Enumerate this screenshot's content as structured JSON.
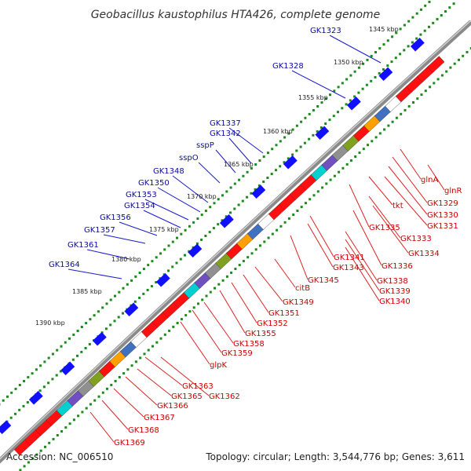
{
  "title": "Geobacillus kaustophilus HTA426, complete genome",
  "accession": "Accession: NC_006510",
  "topology": "Topology: circular; Length: 3,544,776 bp; Genes: 3,611",
  "colors": {
    "backbone": "#8a8a8a",
    "ticks": "#1a8a1a",
    "label_blue": "#0a0aa0",
    "label_red": "#cc0000"
  },
  "kbp_labels": [
    "1345 kbp",
    "1350 kbp",
    "1355 kbp",
    "1360 kbp",
    "1365 kbp",
    "1370 kbp",
    "1375 kbp",
    "1380 kbp",
    "1385 kbp",
    "1390 kbp"
  ],
  "genes_top": [
    "GK1323",
    "GK1328",
    "GK1337",
    "GK1342",
    "sspP",
    "sspO",
    "GK1348",
    "GK1350",
    "GK1353",
    "GK1354",
    "GK1356",
    "GK1357",
    "GK1361",
    "GK1364"
  ],
  "genes_bottom": [
    "glnA",
    "glnR",
    "GK1329",
    "GK1330",
    "GK1331",
    "tkt",
    "GK1335",
    "GK1333",
    "GK1334",
    "GK1336",
    "GK1341",
    "GK1343",
    "GK1338",
    "GK1339",
    "GK1340",
    "GK1345",
    "citB",
    "GK1349",
    "GK1351",
    "GK1352",
    "GK1355",
    "GK1358",
    "GK1359",
    "glpK",
    "GK1363",
    "GK1362",
    "GK1365",
    "GK1366",
    "GK1367",
    "GK1368",
    "GK1369"
  ]
}
